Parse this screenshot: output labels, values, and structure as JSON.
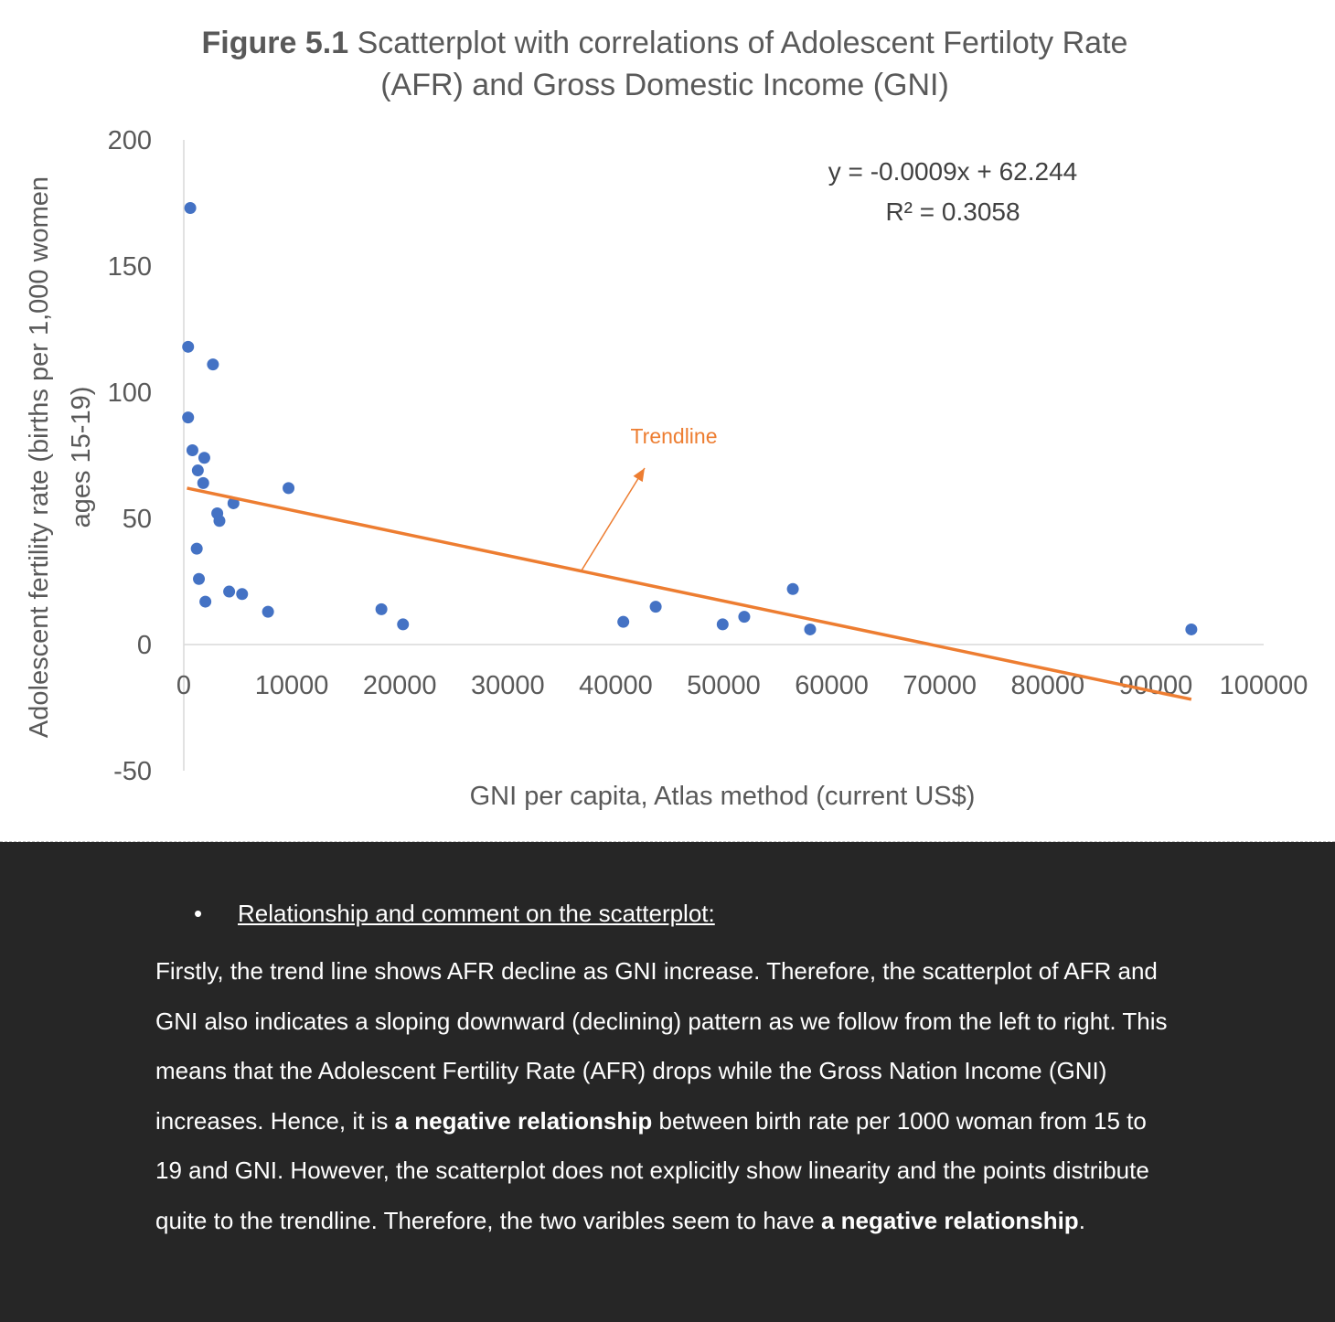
{
  "chart_data": {
    "type": "scatter",
    "title_bold": "Figure 5.1",
    "title_line1": "Scatterplot with correlations of Adolescent Fertiloty Rate",
    "title_line2": "(AFR) and Gross Domestic Income (GNI)",
    "xlabel": "GNI per capita, Atlas method (current US$)",
    "ylabel_line1": "Adolescent fertility rate (births per 1,000 women",
    "ylabel_line2": "ages 15-19)",
    "xlim": [
      0,
      100000
    ],
    "ylim": [
      -50,
      200
    ],
    "x_ticks": [
      0,
      10000,
      20000,
      30000,
      40000,
      50000,
      60000,
      70000,
      80000,
      90000,
      100000
    ],
    "y_ticks": [
      -50,
      0,
      50,
      100,
      150,
      200
    ],
    "series": [
      {
        "color": "#4472C4",
        "points": [
          {
            "x": 600,
            "y": 173
          },
          {
            "x": 400,
            "y": 118
          },
          {
            "x": 2700,
            "y": 111
          },
          {
            "x": 400,
            "y": 90
          },
          {
            "x": 800,
            "y": 77
          },
          {
            "x": 1900,
            "y": 74
          },
          {
            "x": 1300,
            "y": 69
          },
          {
            "x": 1800,
            "y": 64
          },
          {
            "x": 9700,
            "y": 62
          },
          {
            "x": 4600,
            "y": 56
          },
          {
            "x": 3100,
            "y": 52
          },
          {
            "x": 3300,
            "y": 49
          },
          {
            "x": 1200,
            "y": 38
          },
          {
            "x": 1400,
            "y": 26
          },
          {
            "x": 4200,
            "y": 21
          },
          {
            "x": 5400,
            "y": 20
          },
          {
            "x": 2000,
            "y": 17
          },
          {
            "x": 7800,
            "y": 13
          },
          {
            "x": 18300,
            "y": 14
          },
          {
            "x": 20300,
            "y": 8
          },
          {
            "x": 40700,
            "y": 9
          },
          {
            "x": 43700,
            "y": 15
          },
          {
            "x": 49900,
            "y": 8
          },
          {
            "x": 51900,
            "y": 11
          },
          {
            "x": 56400,
            "y": 22
          },
          {
            "x": 58000,
            "y": 6
          },
          {
            "x": 93300,
            "y": 6
          }
        ]
      }
    ],
    "trendline": {
      "label": "Trendline",
      "slope": -0.0009,
      "intercept": 62.244,
      "x_range": [
        300,
        93300
      ],
      "color": "#ED7D31"
    },
    "equation": "y = -0.0009x + 62.244",
    "r_squared": "R² = 0.3058",
    "grid": false,
    "legend": "none"
  },
  "comment": {
    "bullet": "•",
    "heading": "Relationship and comment on the scatterplot:",
    "p1": "Firstly, the trend line shows AFR decline as GNI increase. Therefore, the scatterplot of AFR and GNI also indicates a sloping downward (declining) pattern as we follow from the left to right. This means that the Adolescent Fertility Rate (AFR) drops while the Gross Nation Income (GNI) increases. Hence, it is ",
    "b1": "a negative relationship",
    "p2": " between birth rate per 1000 woman from 15 to 19 and GNI. However, the scatterplot does not explicitly show linearity and the points distribute quite  to the trendline. Therefore, the two varibles seem to have ",
    "b2": "a negative relationship",
    "p3": "."
  }
}
